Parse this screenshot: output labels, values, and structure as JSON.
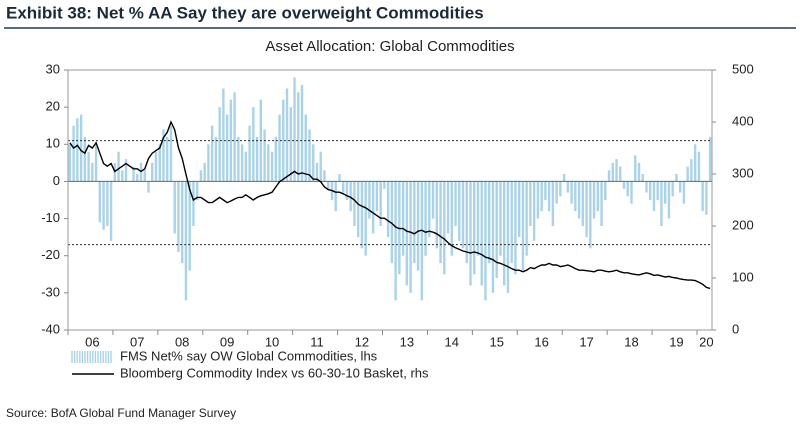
{
  "chart_data": {
    "type": "bar-line",
    "title": "Exhibit 38: Net % AA Say they are overweight Commodities",
    "subtitle": "Asset Allocation: Global Commodities",
    "source": "Source: BofA Global Fund Manager Survey",
    "categories": [
      null,
      null,
      null,
      null,
      null,
      null,
      "06",
      null,
      null,
      null,
      null,
      null,
      null,
      null,
      null,
      null,
      null,
      null,
      "07",
      null,
      null,
      null,
      null,
      null,
      null,
      null,
      null,
      null,
      null,
      null,
      "08",
      null,
      null,
      null,
      null,
      null,
      null,
      null,
      null,
      null,
      null,
      null,
      "09",
      null,
      null,
      null,
      null,
      null,
      null,
      null,
      null,
      null,
      null,
      null,
      "10",
      null,
      null,
      null,
      null,
      null,
      null,
      null,
      null,
      null,
      null,
      null,
      "11",
      null,
      null,
      null,
      null,
      null,
      null,
      null,
      null,
      null,
      null,
      null,
      "12",
      null,
      null,
      null,
      null,
      null,
      null,
      null,
      null,
      null,
      null,
      null,
      "13",
      null,
      null,
      null,
      null,
      null,
      null,
      null,
      null,
      null,
      null,
      null,
      "14",
      null,
      null,
      null,
      null,
      null,
      null,
      null,
      null,
      null,
      null,
      null,
      "15",
      null,
      null,
      null,
      null,
      null,
      null,
      null,
      null,
      null,
      null,
      null,
      "16",
      null,
      null,
      null,
      null,
      null,
      null,
      null,
      null,
      null,
      null,
      null,
      "17",
      null,
      null,
      null,
      null,
      null,
      null,
      null,
      null,
      null,
      null,
      null,
      "18",
      null,
      null,
      null,
      null,
      null,
      null,
      null,
      null,
      null,
      null,
      null,
      "19",
      null,
      null,
      null,
      null,
      null,
      null,
      null,
      "20",
      null
    ],
    "series": [
      {
        "name": "FMS Net% say OW Global Commodities, lhs",
        "color": "#a9d3ea",
        "axis": "y",
        "kind": "bar",
        "values": [
          10,
          15,
          17,
          18,
          12,
          8,
          5,
          10,
          -11,
          -13,
          -12,
          -16,
          5,
          8,
          3,
          6,
          0,
          4,
          2,
          5,
          3,
          -3,
          5,
          8,
          10,
          14,
          12,
          15,
          -14,
          -19,
          -22,
          -32,
          -24,
          -12,
          -5,
          3,
          5,
          10,
          15,
          12,
          20,
          25,
          18,
          22,
          24,
          12,
          10,
          8,
          15,
          20,
          12,
          22,
          14,
          10,
          8,
          12,
          18,
          22,
          25,
          20,
          28,
          24,
          26,
          18,
          14,
          10,
          5,
          8,
          3,
          -2,
          -5,
          -8,
          2,
          -3,
          -5,
          -8,
          -12,
          -15,
          -18,
          -20,
          -10,
          -14,
          -8,
          -12,
          -2,
          -15,
          -22,
          -32,
          -25,
          -20,
          -28,
          -30,
          -22,
          -24,
          -32,
          -20,
          -15,
          -10,
          -18,
          -22,
          -25,
          -14,
          -20,
          -12,
          -16,
          -18,
          -22,
          -28,
          -25,
          -20,
          -28,
          -32,
          -22,
          -30,
          -26,
          -20,
          -28,
          -30,
          -22,
          -25,
          -15,
          -24,
          -20,
          -12,
          -16,
          -10,
          -8,
          -5,
          -8,
          -12,
          -6,
          -4,
          2,
          -3,
          -6,
          -8,
          -10,
          -12,
          -15,
          -18,
          -10,
          -8,
          -12,
          -5,
          3,
          5,
          6,
          4,
          -2,
          -4,
          -6,
          7,
          5,
          2,
          -3,
          -5,
          -8,
          -5,
          -12,
          -6,
          -10,
          -4,
          2,
          -3,
          -6,
          4,
          6,
          10,
          8,
          -8,
          -9,
          12
        ]
      },
      {
        "name": "Bloomberg Commodity Index vs 60-30-10 Basket, rhs",
        "color": "#000000",
        "axis": "y2",
        "kind": "line",
        "values": [
          360,
          350,
          355,
          345,
          340,
          355,
          350,
          360,
          340,
          320,
          315,
          320,
          305,
          310,
          315,
          320,
          315,
          310,
          310,
          305,
          310,
          330,
          340,
          345,
          350,
          370,
          380,
          400,
          385,
          350,
          330,
          300,
          270,
          250,
          255,
          255,
          250,
          245,
          245,
          250,
          255,
          250,
          245,
          248,
          252,
          255,
          255,
          260,
          255,
          250,
          255,
          258,
          260,
          262,
          265,
          275,
          285,
          290,
          295,
          300,
          305,
          300,
          302,
          300,
          298,
          290,
          290,
          285,
          275,
          270,
          268,
          265,
          265,
          262,
          258,
          255,
          250,
          242,
          238,
          235,
          230,
          225,
          220,
          215,
          215,
          210,
          205,
          198,
          195,
          195,
          190,
          188,
          185,
          190,
          192,
          188,
          190,
          188,
          185,
          180,
          175,
          168,
          162,
          158,
          155,
          152,
          150,
          148,
          150,
          148,
          145,
          140,
          138,
          135,
          130,
          128,
          125,
          122,
          118,
          115,
          115,
          112,
          115,
          120,
          118,
          122,
          125,
          125,
          128,
          125,
          125,
          122,
          123,
          125,
          122,
          118,
          115,
          115,
          114,
          113,
          112,
          115,
          115,
          113,
          112,
          113,
          115,
          112,
          110,
          110,
          108,
          107,
          106,
          108,
          110,
          108,
          105,
          106,
          104,
          102,
          103,
          101,
          100,
          98,
          97,
          96,
          96,
          95,
          92,
          88,
          82,
          80
        ]
      }
    ],
    "ylim": [
      -40,
      30
    ],
    "yticks": [
      -40,
      -30,
      -20,
      -10,
      0,
      10,
      20,
      30
    ],
    "y2lim": [
      0,
      500
    ],
    "y2ticks": [
      0,
      100,
      200,
      300,
      400,
      500
    ],
    "reference_lines": [
      11,
      -17
    ]
  }
}
